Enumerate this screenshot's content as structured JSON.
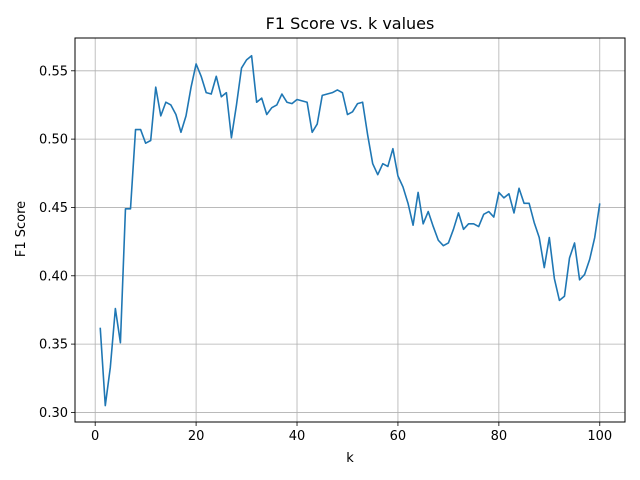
{
  "chart_data": {
    "type": "line",
    "title": "F1 Score vs. k values",
    "xlabel": "k",
    "ylabel": "F1 Score",
    "xlim": [
      -4,
      105
    ],
    "ylim": [
      0.293,
      0.574
    ],
    "grid": true,
    "x_ticks": [
      0,
      20,
      40,
      60,
      80,
      100
    ],
    "x_tick_labels": [
      "0",
      "20",
      "40",
      "60",
      "80",
      "100"
    ],
    "y_ticks": [
      0.3,
      0.35,
      0.4,
      0.45,
      0.5,
      0.55
    ],
    "y_tick_labels": [
      "0.30",
      "0.35",
      "0.40",
      "0.45",
      "0.50",
      "0.55"
    ],
    "series": [
      {
        "color": "#1f77b4",
        "x": [
          1,
          2,
          3,
          4,
          5,
          6,
          7,
          8,
          9,
          10,
          11,
          12,
          13,
          14,
          15,
          16,
          17,
          18,
          19,
          20,
          21,
          22,
          23,
          24,
          25,
          26,
          27,
          28,
          29,
          30,
          31,
          32,
          33,
          34,
          35,
          36,
          37,
          38,
          39,
          40,
          41,
          42,
          43,
          44,
          45,
          46,
          47,
          48,
          49,
          50,
          51,
          52,
          53,
          54,
          55,
          56,
          57,
          58,
          59,
          60,
          61,
          62,
          63,
          64,
          65,
          66,
          67,
          68,
          69,
          70,
          71,
          72,
          73,
          74,
          75,
          76,
          77,
          78,
          79,
          80,
          81,
          82,
          83,
          84,
          85,
          86,
          87,
          88,
          89,
          90,
          91,
          92,
          93,
          94,
          95,
          96,
          97,
          98,
          99,
          100
        ],
        "y": [
          0.362,
          0.305,
          0.333,
          0.376,
          0.351,
          0.449,
          0.449,
          0.507,
          0.507,
          0.497,
          0.499,
          0.538,
          0.517,
          0.527,
          0.525,
          0.518,
          0.505,
          0.517,
          0.538,
          0.555,
          0.546,
          0.534,
          0.533,
          0.546,
          0.531,
          0.534,
          0.501,
          0.525,
          0.552,
          0.558,
          0.561,
          0.527,
          0.53,
          0.518,
          0.523,
          0.525,
          0.533,
          0.527,
          0.526,
          0.529,
          0.528,
          0.527,
          0.505,
          0.511,
          0.532,
          0.533,
          0.534,
          0.536,
          0.534,
          0.518,
          0.52,
          0.526,
          0.527,
          0.503,
          0.482,
          0.474,
          0.482,
          0.48,
          0.493,
          0.473,
          0.465,
          0.453,
          0.437,
          0.461,
          0.438,
          0.447,
          0.436,
          0.426,
          0.422,
          0.424,
          0.434,
          0.446,
          0.434,
          0.438,
          0.438,
          0.436,
          0.445,
          0.447,
          0.443,
          0.461,
          0.457,
          0.46,
          0.446,
          0.464,
          0.453,
          0.453,
          0.439,
          0.428,
          0.406,
          0.428,
          0.398,
          0.382,
          0.385,
          0.413,
          0.424,
          0.397,
          0.401,
          0.412,
          0.428,
          0.453
        ]
      }
    ]
  }
}
